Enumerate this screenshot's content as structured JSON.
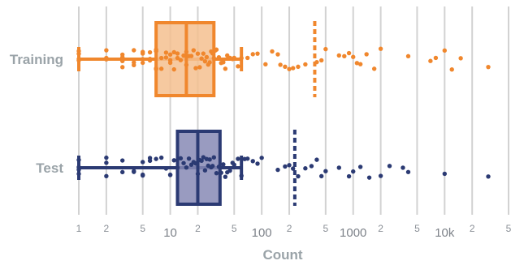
{
  "chart_data": {
    "type": "box",
    "xscale": "log",
    "xlim": [
      1,
      50000
    ],
    "xlabel": "Count",
    "grid": true,
    "x_ticks": [
      {
        "value": 1,
        "label": "1",
        "major": false
      },
      {
        "value": 2,
        "label": "2",
        "major": false
      },
      {
        "value": 5,
        "label": "5",
        "major": false
      },
      {
        "value": 10,
        "label": "10",
        "major": true
      },
      {
        "value": 20,
        "label": "2",
        "major": false
      },
      {
        "value": 50,
        "label": "5",
        "major": false
      },
      {
        "value": 100,
        "label": "100",
        "major": true
      },
      {
        "value": 200,
        "label": "2",
        "major": false
      },
      {
        "value": 500,
        "label": "5",
        "major": false
      },
      {
        "value": 1000,
        "label": "1000",
        "major": true
      },
      {
        "value": 2000,
        "label": "2",
        "major": false
      },
      {
        "value": 5000,
        "label": "5",
        "major": false
      },
      {
        "value": 10000,
        "label": "10k",
        "major": true
      },
      {
        "value": 20000,
        "label": "2",
        "major": false
      },
      {
        "value": 50000,
        "label": "5",
        "major": false
      }
    ],
    "series": [
      {
        "name": "Training",
        "color": "#f0872d",
        "fill": "#f5c08f",
        "whisker_low": 1,
        "q1": 7,
        "median": 15,
        "q3": 30,
        "whisker_high": 60,
        "mean": 380,
        "points": [
          1,
          1,
          1,
          1,
          2,
          2,
          2,
          3,
          3,
          3,
          3,
          4,
          4,
          4,
          5,
          5,
          5,
          5,
          6,
          6,
          6,
          7,
          7,
          7,
          7,
          8,
          8,
          9,
          9,
          10,
          10,
          10,
          11,
          11,
          12,
          12,
          13,
          14,
          15,
          15,
          16,
          17,
          18,
          19,
          20,
          21,
          22,
          23,
          24,
          25,
          26,
          27,
          28,
          29,
          30,
          31,
          32,
          34,
          36,
          38,
          40,
          42,
          45,
          48,
          50,
          55,
          60,
          70,
          80,
          90,
          110,
          130,
          150,
          160,
          180,
          200,
          220,
          250,
          300,
          400,
          450,
          500,
          700,
          800,
          900,
          1000,
          1100,
          1200,
          1400,
          1700,
          2000,
          4000,
          7000,
          8000,
          10000,
          12000,
          15000,
          30000
        ]
      },
      {
        "name": "Test",
        "color": "#2b3a73",
        "fill": "#8789b5",
        "whisker_low": 1,
        "q1": 12,
        "median": 20,
        "q3": 35,
        "whisker_high": 60,
        "mean": 230,
        "points": [
          1,
          1,
          1,
          1,
          2,
          2,
          2,
          3,
          3,
          4,
          4,
          5,
          5,
          5,
          6,
          6,
          7,
          8,
          9,
          10,
          10,
          11,
          12,
          13,
          14,
          15,
          16,
          17,
          18,
          19,
          20,
          21,
          22,
          23,
          24,
          25,
          26,
          27,
          28,
          29,
          30,
          32,
          34,
          36,
          38,
          40,
          42,
          45,
          48,
          50,
          55,
          60,
          65,
          70,
          80,
          90,
          100,
          150,
          180,
          200,
          220,
          250,
          300,
          350,
          400,
          450,
          500,
          700,
          900,
          1000,
          1200,
          1500,
          2000,
          2500,
          3500,
          4000,
          10000,
          30000
        ]
      }
    ]
  }
}
